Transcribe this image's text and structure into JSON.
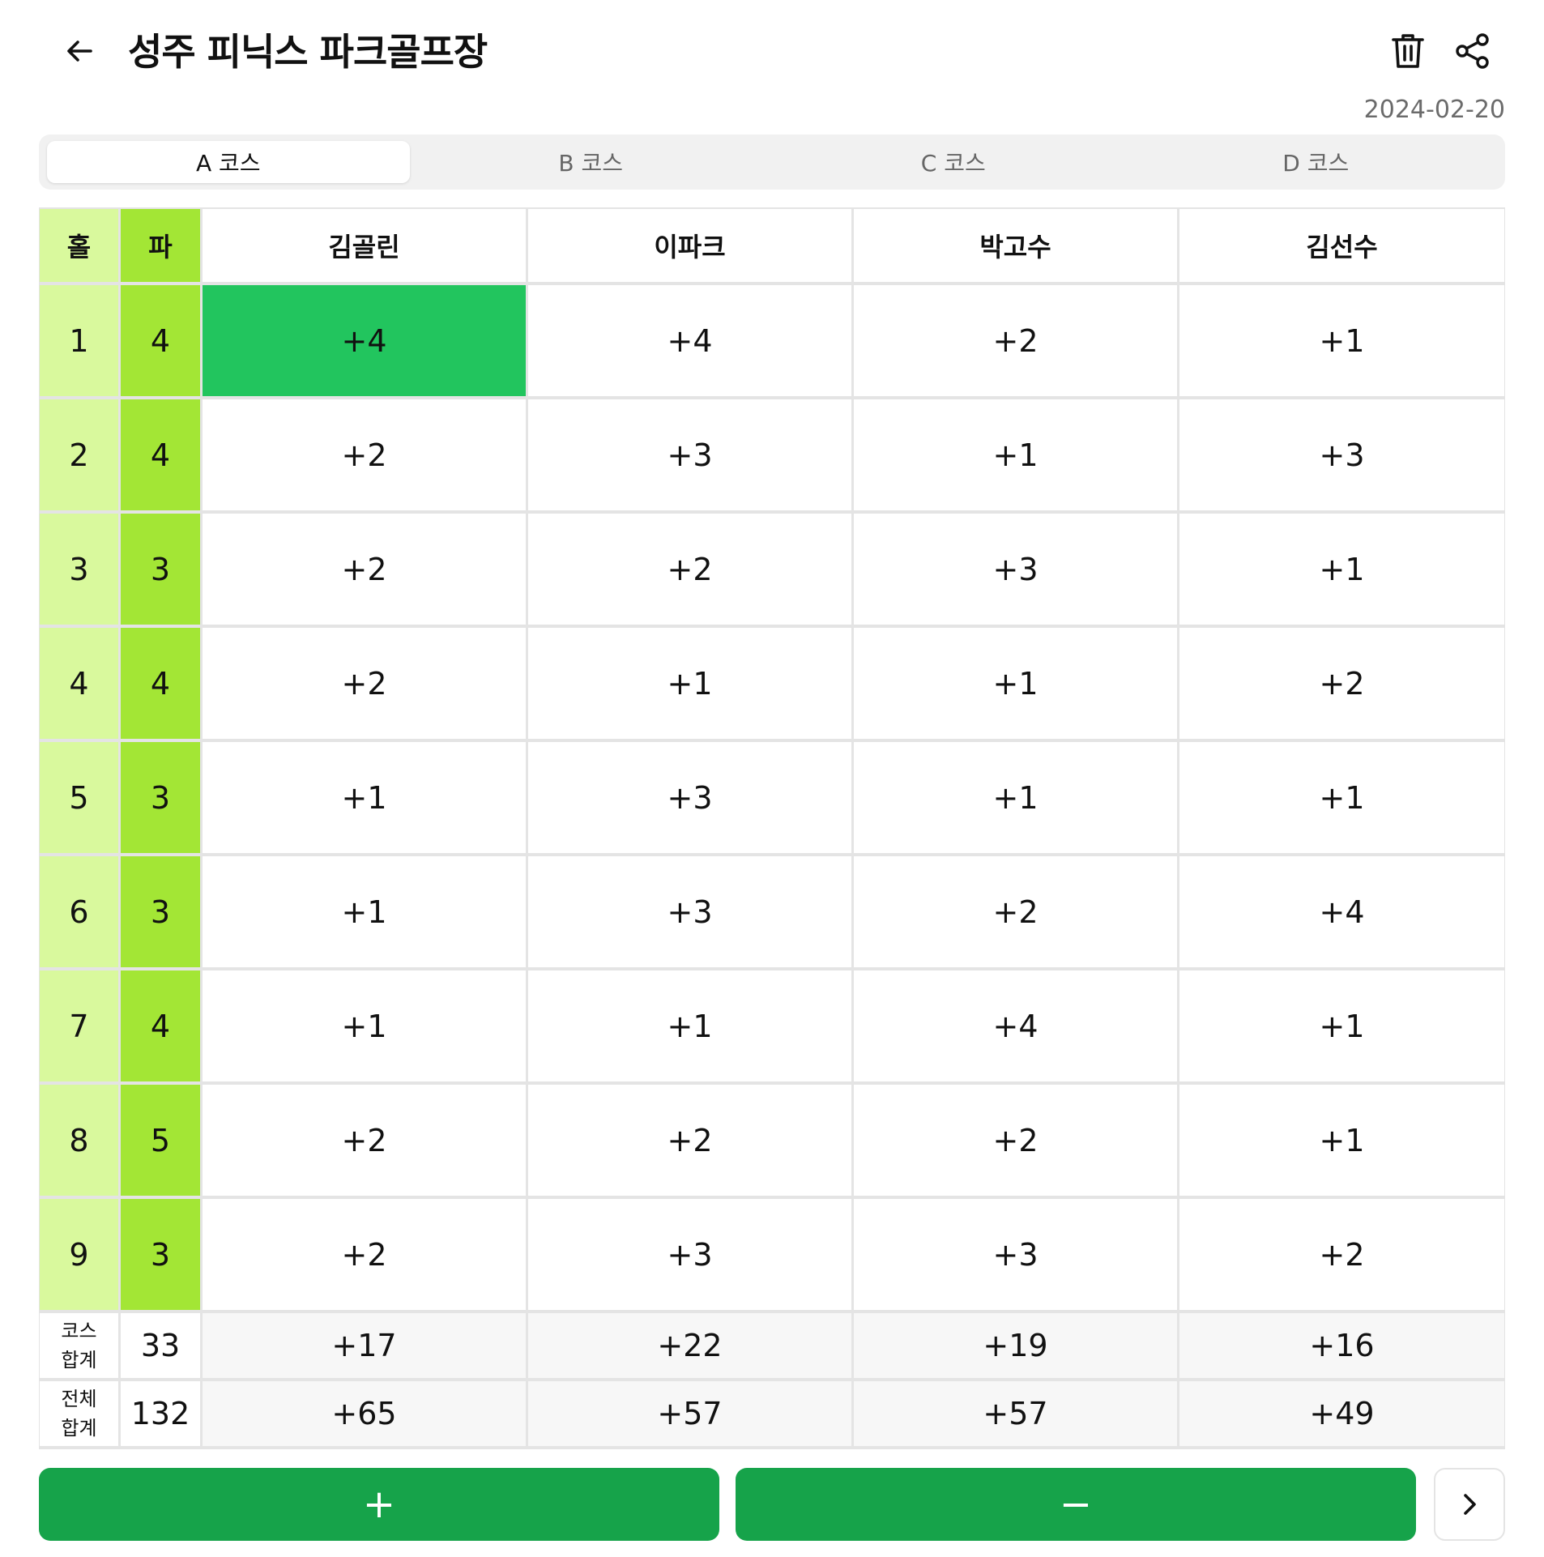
{
  "header": {
    "title": "성주 피닉스 파크골프장",
    "date": "2024-02-20",
    "icons": {
      "back": "arrow-left-icon",
      "trash": "trash-icon",
      "share": "share-icon"
    }
  },
  "tabs": [
    {
      "label": "A 코스",
      "active": true
    },
    {
      "label": "B 코스",
      "active": false
    },
    {
      "label": "C 코스",
      "active": false
    },
    {
      "label": "D 코스",
      "active": false
    }
  ],
  "table": {
    "headers": {
      "hole": "홀",
      "par": "파",
      "players": [
        "김골린",
        "이파크",
        "박고수",
        "김선수"
      ]
    },
    "holes": [
      {
        "hole": "1",
        "par": "4",
        "scores": [
          "+4",
          "+4",
          "+2",
          "+1"
        ]
      },
      {
        "hole": "2",
        "par": "4",
        "scores": [
          "+2",
          "+3",
          "+1",
          "+3"
        ]
      },
      {
        "hole": "3",
        "par": "3",
        "scores": [
          "+2",
          "+2",
          "+3",
          "+1"
        ]
      },
      {
        "hole": "4",
        "par": "4",
        "scores": [
          "+2",
          "+1",
          "+1",
          "+2"
        ]
      },
      {
        "hole": "5",
        "par": "3",
        "scores": [
          "+1",
          "+3",
          "+1",
          "+1"
        ]
      },
      {
        "hole": "6",
        "par": "3",
        "scores": [
          "+1",
          "+3",
          "+2",
          "+4"
        ]
      },
      {
        "hole": "7",
        "par": "4",
        "scores": [
          "+1",
          "+1",
          "+4",
          "+1"
        ]
      },
      {
        "hole": "8",
        "par": "5",
        "scores": [
          "+2",
          "+2",
          "+2",
          "+1"
        ]
      },
      {
        "hole": "9",
        "par": "3",
        "scores": [
          "+2",
          "+3",
          "+3",
          "+2"
        ]
      }
    ],
    "course_total": {
      "label_line1": "코스",
      "label_line2": "합계",
      "par": "33",
      "scores": [
        "+17",
        "+22",
        "+19",
        "+16"
      ]
    },
    "grand_total": {
      "label_line1": "전체",
      "label_line2": "합계",
      "par": "132",
      "scores": [
        "+65",
        "+57",
        "+57",
        "+49"
      ]
    },
    "selected_cell": {
      "hole": "1",
      "player": "김골린"
    }
  },
  "buttons": {
    "plus": "+",
    "minus": "−",
    "next_icon": "chevron-right-icon"
  },
  "colors": {
    "hole_col": "#d9f99d",
    "par_col": "#a3e635",
    "selected": "#22c55e",
    "button": "#16a34a"
  }
}
